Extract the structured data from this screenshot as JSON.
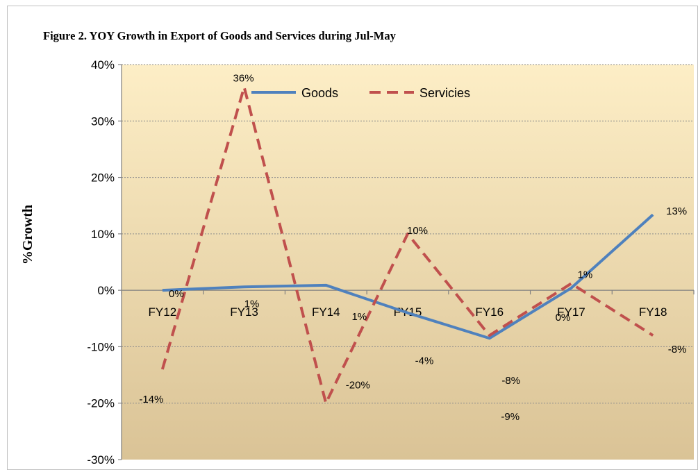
{
  "chart_data": {
    "type": "line",
    "title": "Figure 2. YOY Growth in Export of Goods and Services during Jul-May",
    "ylabel": "%Growth",
    "xlabel": "",
    "categories": [
      "FY12",
      "FY13",
      "FY14",
      "FY15",
      "FY16",
      "FY17",
      "FY18"
    ],
    "ylim": [
      -30,
      40
    ],
    "yticks": [
      40,
      30,
      20,
      10,
      0,
      -10,
      -20,
      -30
    ],
    "ytick_labels": [
      "40%",
      "30%",
      "20%",
      "10%",
      "0%",
      "-10%",
      "-20%",
      "-30%"
    ],
    "grid": true,
    "legend": "top-center",
    "series": [
      {
        "name": "Goods",
        "values": [
          0,
          0.6,
          0.9,
          -4,
          -8.5,
          0.4,
          13.4
        ],
        "labels": [
          "0%",
          "1%",
          "1%",
          "-4%",
          "-9%",
          "0%",
          "13%"
        ],
        "color": "#4f81bd",
        "style": "solid"
      },
      {
        "name": "Servicies",
        "values": [
          -14,
          36,
          -20,
          10,
          -8,
          1.2,
          -8
        ],
        "labels": [
          "-14%",
          "36%",
          "-20%",
          "10%",
          "-8%",
          "1%",
          "-8%"
        ],
        "color": "#c0504d",
        "style": "dashed"
      }
    ],
    "background": {
      "top": "#fdeec6",
      "bottom": "#dac396"
    }
  }
}
